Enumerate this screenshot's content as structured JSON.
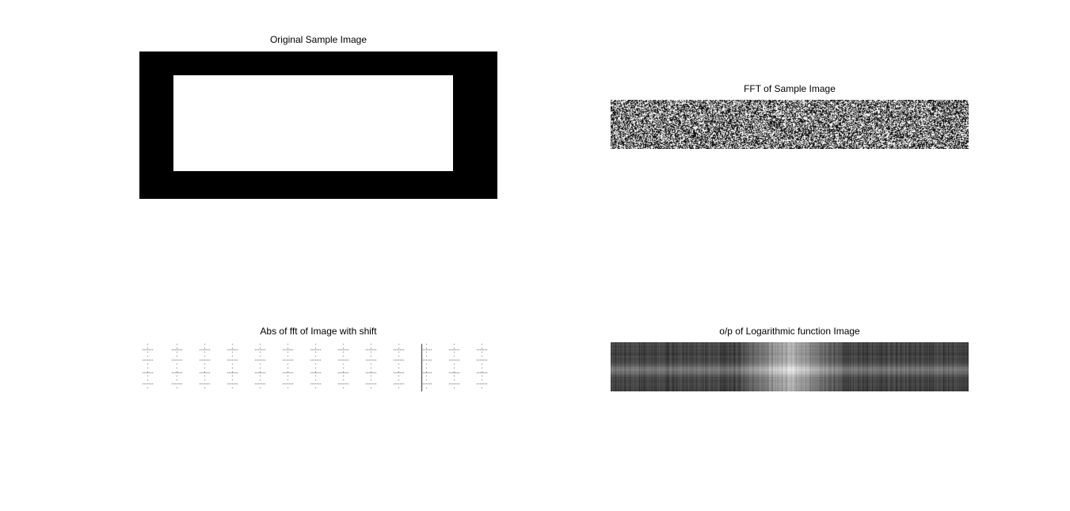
{
  "figure": {
    "panels": [
      {
        "id": "original",
        "title": "Original Sample Image"
      },
      {
        "id": "fft",
        "title": "FFT of Sample Image"
      },
      {
        "id": "abs_shift",
        "title": "Abs of fft of Image with shift"
      },
      {
        "id": "log",
        "title": "o/p of Logarithmic function Image"
      }
    ]
  },
  "colors": {
    "background": "#ffffff",
    "image_black": "#000000",
    "image_white": "#ffffff"
  }
}
